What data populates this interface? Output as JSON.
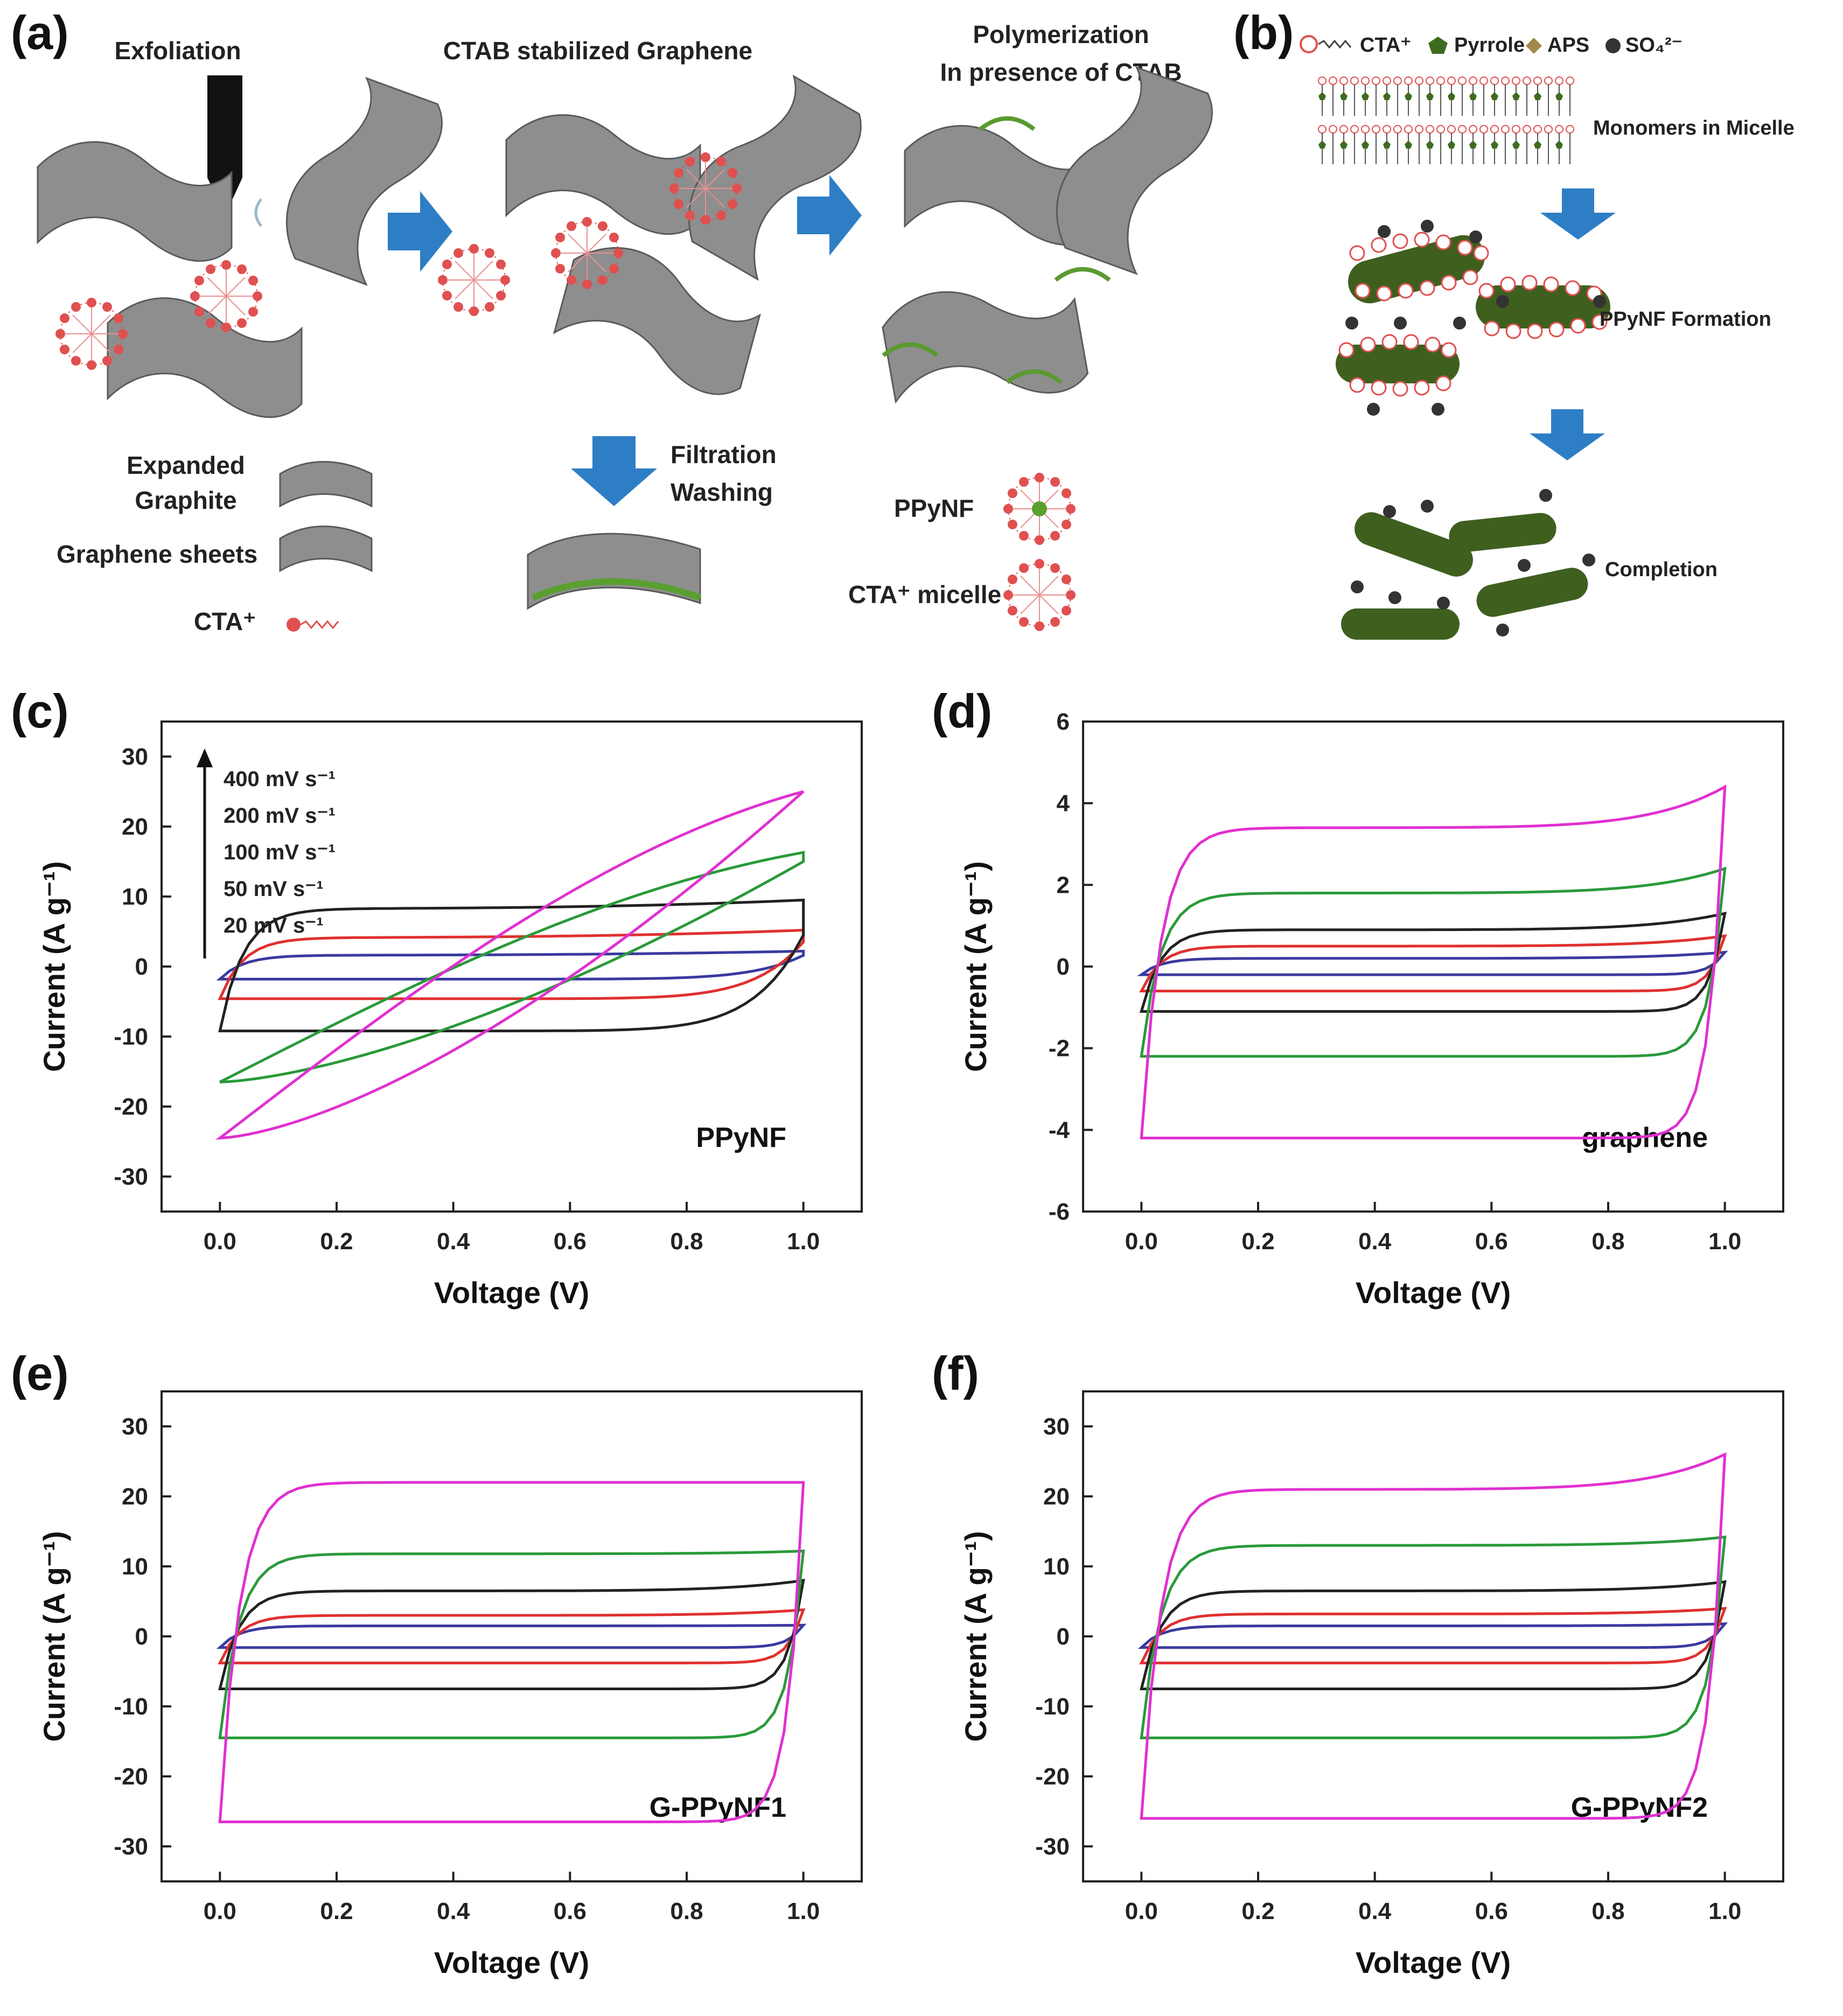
{
  "figure": {
    "panel_labels": {
      "a": "(a)",
      "b": "(b)",
      "c": "(c)",
      "d": "(d)",
      "e": "(e)",
      "f": "(f)"
    }
  },
  "schematic_a": {
    "step1": "Exfoliation",
    "step2": "CTAB stabilized Graphene",
    "step3_line1": "Polymerization",
    "step3_line2": "In presence of CTAB",
    "filtration_line1": "Filtration",
    "filtration_line2": "Washing",
    "legend_expanded_line1": "Expanded",
    "legend_expanded_line2": "Graphite",
    "legend_graphene": "Graphene sheets",
    "legend_cta": "CTA⁺",
    "legend_ppynf": "PPyNF",
    "legend_micelle": "CTA⁺ micelle"
  },
  "schematic_b": {
    "legend_cta": "CTA⁺",
    "legend_pyrrole": "Pyrrole",
    "legend_aps": "APS",
    "legend_so4": "SO₄²⁻",
    "stage1": "Monomers in Micelle",
    "stage2": "PPyNF Formation",
    "stage3": "Completion",
    "colors": {
      "cta": "#e05050",
      "pyrrole": "#3f6b1f",
      "aps": "#a0894a",
      "so4": "#333333",
      "rod": "#3f5f1f",
      "arrow": "#2e7ec5"
    }
  },
  "chart_data": [
    {
      "type": "line",
      "panel": "c",
      "annotation": "PPyNF",
      "xlabel": "Voltage (V)",
      "ylabel": "Current (A g⁻¹)",
      "xlim": [
        -0.1,
        1.1
      ],
      "ylim": [
        -35,
        35
      ],
      "xticks": [
        "0.0",
        "0.2",
        "0.4",
        "0.6",
        "0.8",
        "1.0"
      ],
      "yticks": [
        "-30",
        "-20",
        "-10",
        "0",
        "10",
        "20",
        "30"
      ],
      "legend_arrow": true,
      "series": [
        {
          "name": "20 mV s⁻¹",
          "color": "#3a3aa0",
          "vmax": 2.2,
          "upper_start": -1.8,
          "upper_end": 2.2,
          "lower_start": -1.8,
          "lower_end": 1.6,
          "shape": "rect"
        },
        {
          "name": "50 mV s⁻¹",
          "color": "#e03030",
          "vmax": 5.2,
          "upper_start": -4.6,
          "upper_end": 5.2,
          "lower_start": -4.6,
          "lower_end": 3.5,
          "shape": "rect"
        },
        {
          "name": "100 mV s⁻¹",
          "color": "#222222",
          "vmax": 9.5,
          "upper_start": -9.2,
          "upper_end": 9.5,
          "lower_start": -9.2,
          "lower_end": 4.5,
          "shape": "rect"
        },
        {
          "name": "200 mV s⁻¹",
          "color": "#2a9a3a",
          "vmax": 16.3,
          "upper_start": -16.5,
          "upper_end": 16.3,
          "lower_start": -16.5,
          "lower_end": 15.0,
          "shape": "slant"
        },
        {
          "name": "400 mV s⁻¹",
          "color": "#e030d0",
          "vmax": 25,
          "upper_start": -24.5,
          "upper_end": 25,
          "lower_start": -24.5,
          "lower_end": 25,
          "shape": "slant"
        }
      ]
    },
    {
      "type": "line",
      "panel": "d",
      "annotation": "graphene",
      "xlabel": "Voltage (V)",
      "ylabel": "Current (A g⁻¹)",
      "xlim": [
        -0.1,
        1.1
      ],
      "ylim": [
        -6,
        6
      ],
      "xticks": [
        "0.0",
        "0.2",
        "0.4",
        "0.6",
        "0.8",
        "1.0"
      ],
      "yticks": [
        "-6",
        "-4",
        "-2",
        "0",
        "2",
        "4",
        "6"
      ],
      "series": [
        {
          "color": "#3a3aa0",
          "upper": 0.2,
          "lower": -0.2,
          "end_up": 0.35
        },
        {
          "color": "#e03030",
          "upper": 0.5,
          "lower": -0.6,
          "end_up": 0.75
        },
        {
          "color": "#222222",
          "upper": 0.9,
          "lower": -1.1,
          "end_up": 1.3
        },
        {
          "color": "#2a9a3a",
          "upper": 1.8,
          "lower": -2.2,
          "end_up": 2.4
        },
        {
          "color": "#e030d0",
          "upper": 3.4,
          "lower": -4.2,
          "end_up": 4.4
        }
      ]
    },
    {
      "type": "line",
      "panel": "e",
      "annotation": "G-PPyNF1",
      "xlabel": "Voltage (V)",
      "ylabel": "Current (A g⁻¹)",
      "xlim": [
        -0.1,
        1.1
      ],
      "ylim": [
        -35,
        35
      ],
      "xticks": [
        "0.0",
        "0.2",
        "0.4",
        "0.6",
        "0.8",
        "1.0"
      ],
      "yticks": [
        "-30",
        "-20",
        "-10",
        "0",
        "10",
        "20",
        "30"
      ],
      "series": [
        {
          "color": "#3a3aa0",
          "upper": 1.5,
          "lower": -1.6,
          "end_up": 1.6
        },
        {
          "color": "#e03030",
          "upper": 3.0,
          "lower": -3.8,
          "end_up": 3.8
        },
        {
          "color": "#222222",
          "upper": 6.5,
          "lower": -7.5,
          "end_up": 8.0
        },
        {
          "color": "#2a9a3a",
          "upper": 11.8,
          "lower": -14.5,
          "end_up": 12.2
        },
        {
          "color": "#e030d0",
          "upper": 22.0,
          "lower": -26.5,
          "end_up": 22.0
        }
      ]
    },
    {
      "type": "line",
      "panel": "f",
      "annotation": "G-PPyNF2",
      "xlabel": "Voltage (V)",
      "ylabel": "Current (A g⁻¹)",
      "xlim": [
        -0.1,
        1.1
      ],
      "ylim": [
        -35,
        35
      ],
      "xticks": [
        "0.0",
        "0.2",
        "0.4",
        "0.6",
        "0.8",
        "1.0"
      ],
      "yticks": [
        "-30",
        "-20",
        "-10",
        "0",
        "10",
        "20",
        "30"
      ],
      "series": [
        {
          "color": "#3a3aa0",
          "upper": 1.5,
          "lower": -1.6,
          "end_up": 1.8
        },
        {
          "color": "#e03030",
          "upper": 3.2,
          "lower": -3.8,
          "end_up": 4.0
        },
        {
          "color": "#222222",
          "upper": 6.5,
          "lower": -7.5,
          "end_up": 7.8
        },
        {
          "color": "#2a9a3a",
          "upper": 13.0,
          "lower": -14.5,
          "end_up": 14.2
        },
        {
          "color": "#e030d0",
          "upper": 21.0,
          "lower": -26.0,
          "end_up": 26.0
        }
      ]
    }
  ]
}
